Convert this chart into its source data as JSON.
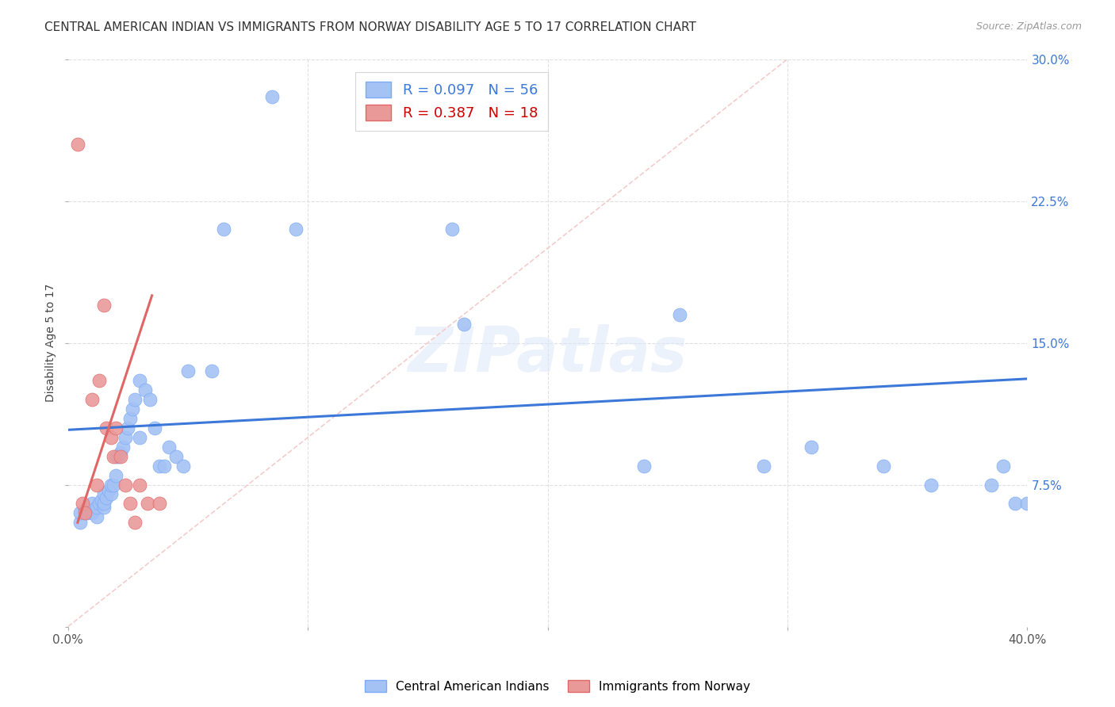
{
  "title": "CENTRAL AMERICAN INDIAN VS IMMIGRANTS FROM NORWAY DISABILITY AGE 5 TO 17 CORRELATION CHART",
  "source": "Source: ZipAtlas.com",
  "ylabel": "Disability Age 5 to 17",
  "xlim": [
    0.0,
    0.4
  ],
  "ylim": [
    0.0,
    0.3
  ],
  "xticks": [
    0.0,
    0.1,
    0.2,
    0.3,
    0.4
  ],
  "xticklabels": [
    "0.0%",
    "",
    "",
    "",
    "40.0%"
  ],
  "yticks": [
    0.0,
    0.075,
    0.15,
    0.225,
    0.3
  ],
  "yticklabels": [
    "",
    "7.5%",
    "15.0%",
    "22.5%",
    "30.0%"
  ],
  "blue_color": "#a4c2f4",
  "pink_color": "#ea9999",
  "blue_line_color": "#3c78d8",
  "pink_line_color": "#e06666",
  "diag_color": "#f4cccc",
  "legend_r1": "R = 0.097",
  "legend_n1": "N = 56",
  "legend_r2": "R = 0.387",
  "legend_n2": "N = 18",
  "watermark": "ZIPatlas",
  "blue_scatter_x": [
    0.005,
    0.005,
    0.007,
    0.008,
    0.01,
    0.01,
    0.01,
    0.012,
    0.012,
    0.013,
    0.014,
    0.015,
    0.015,
    0.015,
    0.016,
    0.017,
    0.018,
    0.018,
    0.019,
    0.02,
    0.02,
    0.021,
    0.022,
    0.023,
    0.024,
    0.025,
    0.026,
    0.027,
    0.028,
    0.03,
    0.03,
    0.032,
    0.034,
    0.036,
    0.038,
    0.04,
    0.042,
    0.045,
    0.048,
    0.05,
    0.06,
    0.065,
    0.085,
    0.095,
    0.16,
    0.165,
    0.24,
    0.255,
    0.29,
    0.31,
    0.34,
    0.36,
    0.385,
    0.39,
    0.395,
    0.4
  ],
  "blue_scatter_y": [
    0.055,
    0.06,
    0.062,
    0.06,
    0.06,
    0.062,
    0.065,
    0.058,
    0.063,
    0.065,
    0.067,
    0.063,
    0.065,
    0.07,
    0.068,
    0.072,
    0.07,
    0.075,
    0.075,
    0.08,
    0.09,
    0.09,
    0.092,
    0.095,
    0.1,
    0.105,
    0.11,
    0.115,
    0.12,
    0.1,
    0.13,
    0.125,
    0.12,
    0.105,
    0.085,
    0.085,
    0.095,
    0.09,
    0.085,
    0.135,
    0.135,
    0.21,
    0.28,
    0.21,
    0.21,
    0.16,
    0.085,
    0.165,
    0.085,
    0.095,
    0.085,
    0.075,
    0.075,
    0.085,
    0.065,
    0.065
  ],
  "pink_scatter_x": [
    0.004,
    0.006,
    0.007,
    0.01,
    0.012,
    0.013,
    0.015,
    0.016,
    0.018,
    0.019,
    0.02,
    0.022,
    0.024,
    0.026,
    0.028,
    0.03,
    0.033,
    0.038
  ],
  "pink_scatter_y": [
    0.255,
    0.065,
    0.06,
    0.12,
    0.075,
    0.13,
    0.17,
    0.105,
    0.1,
    0.09,
    0.105,
    0.09,
    0.075,
    0.065,
    0.055,
    0.075,
    0.065,
    0.065
  ],
  "blue_trend": [
    0.0,
    0.4,
    0.104,
    0.131
  ],
  "pink_trend": [
    0.004,
    0.035,
    0.055,
    0.175
  ],
  "diag_trend": [
    0.0,
    0.3,
    0.0,
    0.3
  ],
  "grid_color": "#e0e0e0",
  "background_color": "#ffffff",
  "title_fontsize": 11,
  "axis_label_fontsize": 10,
  "tick_fontsize": 11,
  "legend_fontsize": 13
}
